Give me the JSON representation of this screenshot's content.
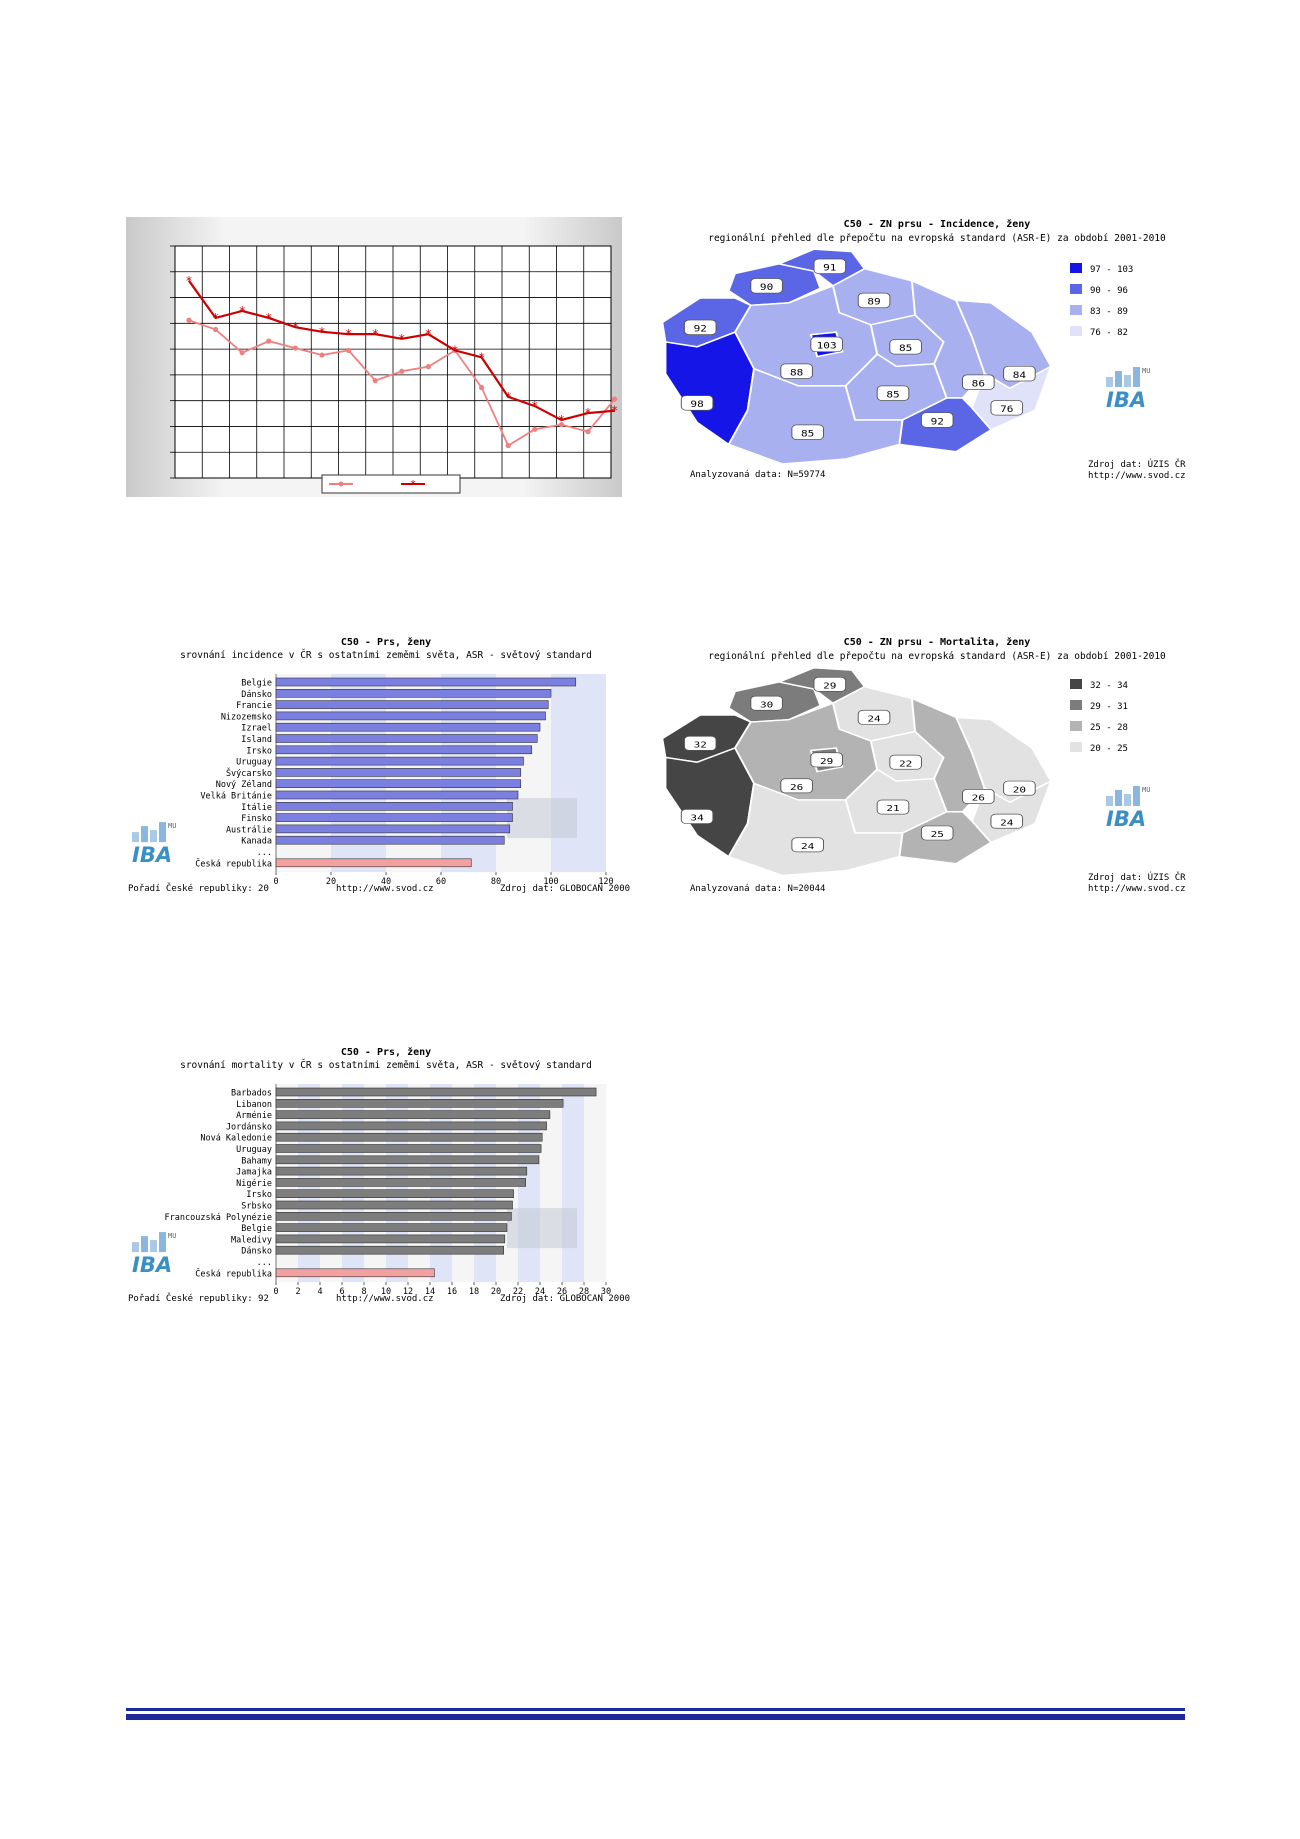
{
  "trend_chart": {
    "type": "line",
    "series": [
      {
        "values": [
          68,
          64,
          54,
          59,
          56,
          53,
          55,
          42,
          46,
          48,
          55,
          39,
          14,
          21,
          23,
          20,
          34
        ],
        "color": "#f08080"
      },
      {
        "values": [
          85,
          69,
          72,
          69,
          65,
          63,
          62,
          62,
          60,
          62,
          55,
          52,
          35,
          31,
          25,
          28,
          29
        ],
        "color": "#cc0000"
      }
    ]
  },
  "incidence_map": {
    "title": "C50 - ZN prsu - Incidence, ženy",
    "subtitle": "regionální přehled dle přepočtu na evropská standard (ASR-E) za období 2001-2010",
    "regions": [
      "90",
      "91",
      "92",
      "103",
      "89",
      "88",
      "85",
      "98",
      "85",
      "86",
      "84",
      "76",
      "92",
      "85"
    ],
    "legend": [
      "97 - 103",
      "90 - 96",
      "83 - 89",
      "76 - 82"
    ],
    "legend_colors": [
      "#1515e8",
      "#5a66e6",
      "#a9b0f0",
      "#dfe2f8"
    ],
    "analysed": "Analyzovaná data: N=59774",
    "source": [
      "Zdroj dat: ÚZIS ČR",
      "http://www.svod.cz"
    ]
  },
  "mortality_map": {
    "title": "C50 - ZN prsu - Mortalita, ženy",
    "subtitle": "regionální přehled dle přepočtu na evropská standard (ASR-E) za období 2001-2010",
    "regions": [
      "30",
      "29",
      "32",
      "29",
      "24",
      "26",
      "22",
      "34",
      "21",
      "26",
      "20",
      "24",
      "25",
      "24"
    ],
    "legend": [
      "32 - 34",
      "29 - 31",
      "25 - 28",
      "20 - 25"
    ],
    "legend_colors": [
      "#454545",
      "#7c7c7c",
      "#b3b3b3",
      "#e2e2e2"
    ],
    "analysed": "Analyzovaná data: N=20044",
    "source": [
      "Zdroj dat: ÚZIS ČR",
      "http://www.svod.cz"
    ]
  },
  "incidence_bars": {
    "title": "C50 - Prs, ženy",
    "subtitle": "srovnání incidence v ČR s ostatními zeměmi světa, ASR - světový standard",
    "chart_data": {
      "type": "bar",
      "categories": [
        "Belgie",
        "Dánsko",
        "Francie",
        "Nizozemsko",
        "Izrael",
        "Island",
        "Irsko",
        "Uruguay",
        "Švýcarsko",
        "Nový Zéland",
        "Velká Británie",
        "Itálie",
        "Finsko",
        "Austrálie",
        "Kanada",
        "...",
        "Česká republika"
      ],
      "values": [
        109,
        100,
        99,
        98,
        96,
        95,
        93,
        90,
        89,
        89,
        88,
        86,
        86,
        85,
        83,
        null,
        71
      ],
      "xlim": [
        0,
        120
      ],
      "xticks": [
        "0",
        "20",
        "40",
        "60",
        "80",
        "100",
        "120"
      ]
    },
    "rank": "Pořadí České republiky: 20",
    "url": "http://www.svod.cz",
    "source": "Zdroj dat: GLOBOCAN 2000"
  },
  "mortality_bars": {
    "title": "C50 - Prs, ženy",
    "subtitle": "srovnání mortality v ČR s ostatními zeměmi světa, ASR - světový standard",
    "chart_data": {
      "type": "bar",
      "categories": [
        "Barbados",
        "Libanon",
        "Arménie",
        "Jordánsko",
        "Nová Kaledonie",
        "Uruguay",
        "Bahamy",
        "Jamajka",
        "Nigérie",
        "Irsko",
        "Srbsko",
        "Francouzská Polynézie",
        "Belgie",
        "Maledivy",
        "Dánsko",
        "...",
        "Česká republika"
      ],
      "values": [
        29.1,
        26.1,
        24.9,
        24.6,
        24.2,
        24.1,
        23.9,
        22.8,
        22.7,
        21.6,
        21.5,
        21.4,
        21.0,
        20.8,
        20.7,
        null,
        14.4
      ],
      "xlim": [
        0,
        30
      ],
      "xticks": [
        "0",
        "2",
        "4",
        "6",
        "8",
        "10",
        "12",
        "14",
        "16",
        "18",
        "20",
        "22",
        "24",
        "26",
        "28",
        "30"
      ]
    },
    "rank": "Pořadí České republiky: 92",
    "url": "http://www.svod.cz",
    "source": "Zdroj dat: GLOBOCAN 2000"
  },
  "logo": {
    "word": "IBA",
    "mu": "MU"
  }
}
